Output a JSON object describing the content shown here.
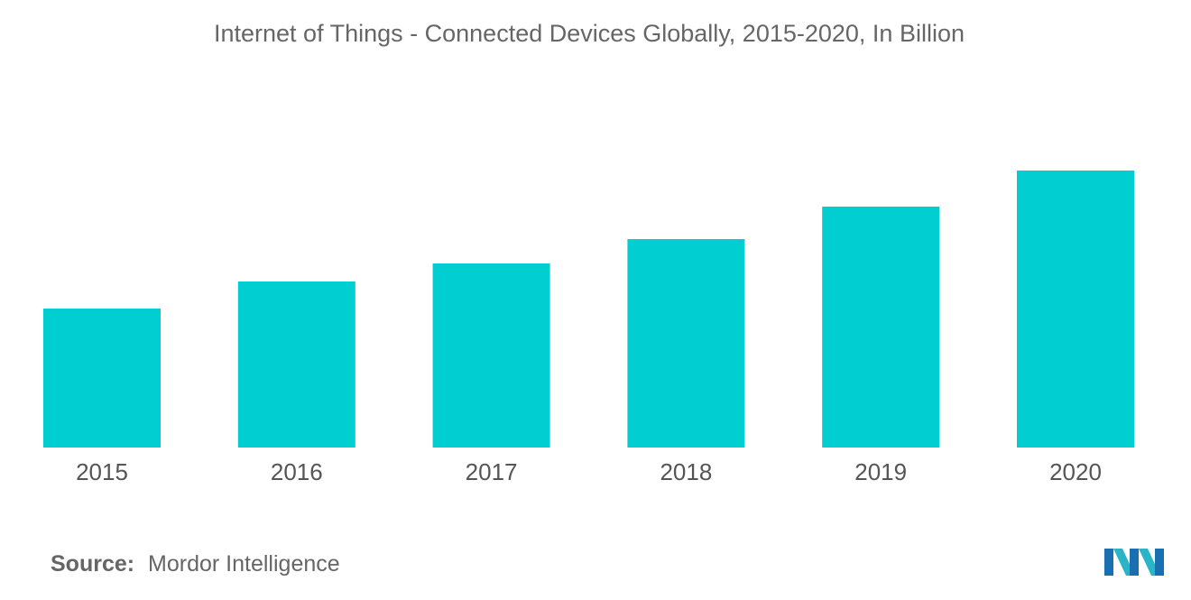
{
  "chart_data": {
    "type": "bar",
    "title": "Internet of Things - Connected Devices Globally, 2015-2020, In Billion",
    "categories": [
      "2015",
      "2016",
      "2017",
      "2018",
      "2019",
      "2020"
    ],
    "values": [
      15.4,
      18.4,
      20.4,
      23.1,
      26.7,
      30.7
    ],
    "xlabel": "",
    "ylabel": "",
    "ylim": [
      0,
      40
    ],
    "grid": false,
    "legend": "none",
    "colors": {
      "bar": "#00CED1"
    }
  },
  "source": {
    "label": "Source:",
    "text": "Mordor Intelligence"
  },
  "logo": {
    "icon": "mordor-intelligence-logo-icon",
    "colors": [
      "#1a6fb0",
      "#2bb3c8"
    ]
  }
}
